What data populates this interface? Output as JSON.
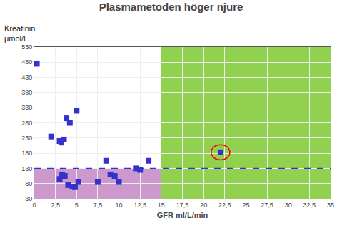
{
  "chart_data": {
    "type": "scatter",
    "title": "Plasmametoden höger njure",
    "xlabel": "GFR ml/L/min",
    "ylabel": [
      "Kreatinin",
      "μmol/L"
    ],
    "x": [
      0.3,
      2.0,
      3.0,
      3.2,
      3.5,
      3.8,
      4.2,
      5.0,
      3.0,
      3.3,
      3.6,
      4.0,
      4.5,
      4.8,
      5.2,
      7.5,
      8.5,
      9.0,
      9.5,
      10.0,
      12.0,
      12.5,
      13.5,
      22.0
    ],
    "values": [
      475,
      235,
      220,
      215,
      225,
      295,
      280,
      320,
      95,
      110,
      105,
      75,
      70,
      68,
      85,
      85,
      155,
      110,
      105,
      85,
      130,
      125,
      155,
      183
    ],
    "color": "#3333cc",
    "marker": "square",
    "xlim": [
      0,
      35
    ],
    "ylim": [
      30,
      530
    ],
    "xticks": [
      0,
      {
        "value": 2.5,
        "label": "2,5"
      },
      5,
      {
        "value": 7.5,
        "label": "7,5"
      },
      10,
      {
        "value": 12.5,
        "label": "12,5"
      },
      15,
      {
        "value": 17.5,
        "label": "17,5"
      },
      20,
      {
        "value": 22.5,
        "label": "22,5"
      },
      25,
      {
        "value": 27.5,
        "label": "27,5"
      },
      30,
      {
        "value": 32.5,
        "label": "32,5"
      },
      35
    ],
    "yticks": [
      30,
      80,
      130,
      180,
      230,
      280,
      330,
      380,
      430,
      480,
      530
    ],
    "grid": true,
    "regions": [
      {
        "x": [
          15,
          35
        ],
        "y": [
          30,
          530
        ],
        "color": "#92d050"
      },
      {
        "x": [
          0,
          15
        ],
        "y": [
          30,
          130
        ],
        "color": "#cc99cc"
      }
    ],
    "reference_line": {
      "y": 130,
      "color": "#3333cc",
      "line_style": "dashed"
    },
    "highlight": {
      "x": 22.0,
      "y": 183,
      "width": 2.2,
      "height": 50,
      "color": "red"
    }
  }
}
